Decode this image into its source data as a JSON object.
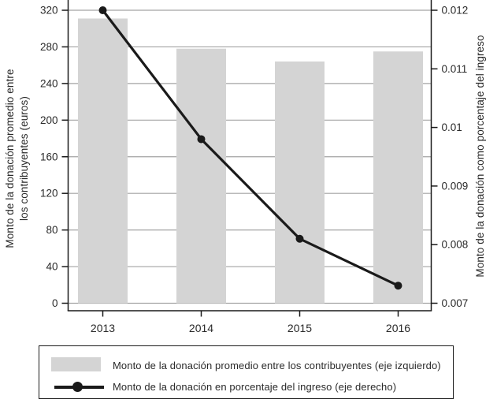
{
  "figure": {
    "left_axis_title": "Monto de la donación promedio entre\nlos contribuyentes (euros)",
    "right_axis_title": "Monto de la donación como porcentaje del ingreso"
  },
  "chart_data": {
    "type": "bar+line",
    "categories": [
      "2013",
      "2014",
      "2015",
      "2016"
    ],
    "series": [
      {
        "name": "Monto de la donación promedio entre los contribuyentes (eje izquierdo)",
        "type": "bar",
        "axis": "left",
        "values": [
          311,
          278,
          264,
          275
        ]
      },
      {
        "name": "Monto de la donación en porcentaje del ingreso (eje derecho)",
        "type": "line",
        "axis": "right",
        "values": [
          0.012,
          0.0098,
          0.0081,
          0.0073
        ]
      }
    ],
    "left_axis": {
      "label": "Monto de la donación promedio entre los contribuyentes (euros)",
      "ticks": [
        0,
        40,
        80,
        120,
        160,
        200,
        240,
        280,
        320
      ],
      "tick_labels": [
        "0",
        "40",
        "80",
        "120",
        "160",
        "200",
        "240",
        "280",
        "320"
      ],
      "lim": [
        0,
        331
      ]
    },
    "right_axis": {
      "label": "Monto de la donación como porcentaje del ingreso",
      "ticks": [
        0.007,
        0.008,
        0.009,
        0.01,
        0.011,
        0.012
      ],
      "tick_labels": [
        "0.007",
        "0.008",
        "0.009",
        "0.01",
        "0.011",
        "0.012"
      ],
      "lim": [
        0.007,
        0.01218
      ]
    },
    "grid": true,
    "legend_position": "bottom",
    "colors": {
      "bar": "#d4d4d4",
      "line": "#1a1a1a",
      "grid": "#a3a3a3",
      "spine": "#1a1a1a",
      "text": "#2a2a2a"
    }
  }
}
